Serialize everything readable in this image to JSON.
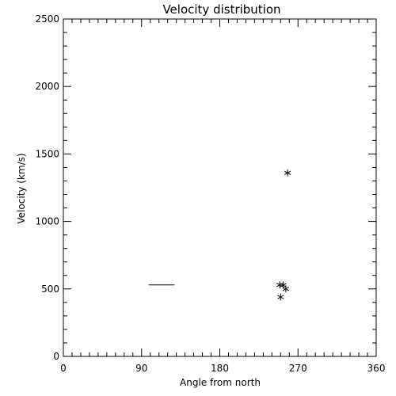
{
  "chart_data": {
    "type": "scatter",
    "title": "Velocity distribution",
    "xlabel": "Angle from north",
    "ylabel": "Velocity (km/s)",
    "xlim": [
      0,
      360
    ],
    "ylim": [
      0,
      2500
    ],
    "x_ticks": [
      0,
      90,
      180,
      270,
      360
    ],
    "y_ticks": [
      0,
      500,
      1000,
      1500,
      2000,
      2500
    ],
    "x_minor_step": 10,
    "y_minor_step": 100,
    "grid": false,
    "marker": "asterisk",
    "series": [
      {
        "points": [
          {
            "x": 258,
            "y": 1360
          },
          {
            "x": 249,
            "y": 530
          },
          {
            "x": 253,
            "y": 528
          },
          {
            "x": 256,
            "y": 500
          },
          {
            "x": 250,
            "y": 440
          }
        ]
      }
    ],
    "segments": [
      {
        "x": [
          98,
          128
        ],
        "y": [
          530,
          530
        ]
      }
    ]
  }
}
